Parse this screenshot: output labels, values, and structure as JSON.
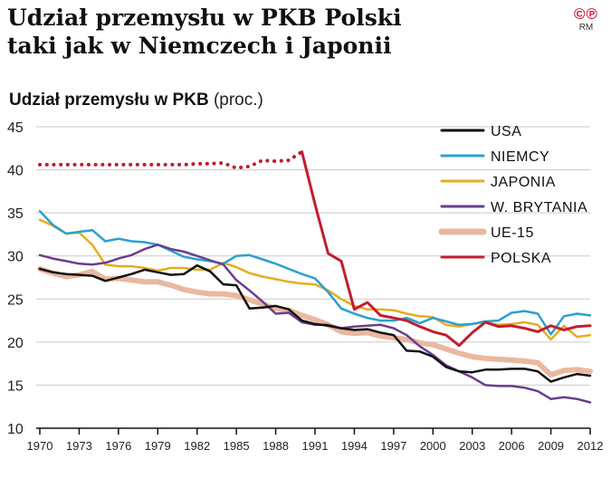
{
  "header": {
    "title_line1": "Udział przemysłu w PKB Polski",
    "title_line2": "taki jak w Niemczech i Japonii",
    "logo_marks": "©℗",
    "logo_credit": "RM"
  },
  "chart_data": {
    "type": "line",
    "title": "Udział przemysłu w PKB",
    "unit": "(proc.)",
    "xlabel": "",
    "ylabel": "",
    "xlim": [
      1970,
      2012
    ],
    "ylim": [
      10,
      45
    ],
    "yticks": [
      10,
      15,
      20,
      25,
      30,
      35,
      40,
      45
    ],
    "xticks": [
      1970,
      1973,
      1976,
      1979,
      1982,
      1985,
      1988,
      1991,
      1994,
      1997,
      2000,
      2003,
      2006,
      2009,
      2012
    ],
    "grid": "horizontal",
    "legend_position": "top-right",
    "series": [
      {
        "name": "USA",
        "color": "#111111",
        "style": "solid",
        "width": 2.5,
        "x": [
          1970,
          1971,
          1972,
          1973,
          1974,
          1975,
          1976,
          1977,
          1978,
          1979,
          1980,
          1981,
          1982,
          1983,
          1984,
          1985,
          1986,
          1987,
          1988,
          1989,
          1990,
          1991,
          1992,
          1993,
          1994,
          1995,
          1996,
          1997,
          1998,
          1999,
          2000,
          2001,
          2002,
          2003,
          2004,
          2005,
          2006,
          2007,
          2008,
          2009,
          2010,
          2011,
          2012
        ],
        "values": [
          28.5,
          28.1,
          27.9,
          27.8,
          27.7,
          27.1,
          27.5,
          27.9,
          28.4,
          28.1,
          27.8,
          27.9,
          28.9,
          28.2,
          26.7,
          26.6,
          23.9,
          24.0,
          24.2,
          23.8,
          22.5,
          22.1,
          21.9,
          21.6,
          21.4,
          21.5,
          21.1,
          20.8,
          19.0,
          18.9,
          18.3,
          17.1,
          16.6,
          16.5,
          16.8,
          16.8,
          16.9,
          16.9,
          16.6,
          15.4,
          15.9,
          16.3,
          16.1
        ]
      },
      {
        "name": "NIEMCY",
        "color": "#2aa0cf",
        "style": "solid",
        "width": 2.5,
        "x": [
          1970,
          1971,
          1972,
          1973,
          1974,
          1975,
          1976,
          1977,
          1978,
          1979,
          1980,
          1981,
          1982,
          1983,
          1984,
          1985,
          1986,
          1987,
          1988,
          1989,
          1990,
          1991,
          1992,
          1993,
          1994,
          1995,
          1996,
          1997,
          1998,
          1999,
          2000,
          2001,
          2002,
          2003,
          2004,
          2005,
          2006,
          2007,
          2008,
          2009,
          2010,
          2011,
          2012
        ],
        "values": [
          35.2,
          33.6,
          32.6,
          32.8,
          33.0,
          31.7,
          32.0,
          31.7,
          31.6,
          31.3,
          30.6,
          29.9,
          29.6,
          29.4,
          29.1,
          30.0,
          30.1,
          29.6,
          29.1,
          28.5,
          27.9,
          27.4,
          25.8,
          23.9,
          23.3,
          22.8,
          22.5,
          22.5,
          22.8,
          22.2,
          22.8,
          22.4,
          22.0,
          22.1,
          22.4,
          22.5,
          23.4,
          23.6,
          23.3,
          20.9,
          23.0,
          23.3,
          23.1
        ]
      },
      {
        "name": "JAPONIA",
        "color": "#e5ad1f",
        "style": "solid",
        "width": 2.5,
        "x": [
          1970,
          1971,
          1972,
          1973,
          1974,
          1975,
          1976,
          1977,
          1978,
          1979,
          1980,
          1981,
          1982,
          1983,
          1984,
          1985,
          1986,
          1987,
          1988,
          1989,
          1990,
          1991,
          1992,
          1993,
          1994,
          1995,
          1996,
          1997,
          1998,
          1999,
          2000,
          2001,
          2002,
          2003,
          2004,
          2005,
          2006,
          2007,
          2008,
          2009,
          2010,
          2011,
          2012
        ],
        "values": [
          34.2,
          33.5,
          32.6,
          32.7,
          31.3,
          29.0,
          28.8,
          28.8,
          28.6,
          28.3,
          28.6,
          28.6,
          28.4,
          28.4,
          29.2,
          28.7,
          28.0,
          27.6,
          27.3,
          27.0,
          26.8,
          26.7,
          26.0,
          25.0,
          24.2,
          23.8,
          23.8,
          23.7,
          23.3,
          23.0,
          22.9,
          22.0,
          21.8,
          22.1,
          22.3,
          22.0,
          22.1,
          22.3,
          22.0,
          20.3,
          21.9,
          20.6,
          20.8
        ]
      },
      {
        "name": "W. BRYTANIA",
        "color": "#6a3d8f",
        "style": "solid",
        "width": 2.5,
        "x": [
          1970,
          1971,
          1972,
          1973,
          1974,
          1975,
          1976,
          1977,
          1978,
          1979,
          1980,
          1981,
          1982,
          1983,
          1984,
          1985,
          1986,
          1987,
          1988,
          1989,
          1990,
          1991,
          1992,
          1993,
          1994,
          1995,
          1996,
          1997,
          1998,
          1999,
          2000,
          2001,
          2002,
          2003,
          2004,
          2005,
          2006,
          2007,
          2008,
          2009,
          2010,
          2011,
          2012
        ],
        "values": [
          30.1,
          29.7,
          29.4,
          29.1,
          29.0,
          29.2,
          29.7,
          30.1,
          30.8,
          31.3,
          30.8,
          30.5,
          30.0,
          29.5,
          29.0,
          27.2,
          26.0,
          24.7,
          23.3,
          23.4,
          22.3,
          22.0,
          22.0,
          21.6,
          21.8,
          21.9,
          22.0,
          21.6,
          20.8,
          19.5,
          18.5,
          17.3,
          16.6,
          15.9,
          15.0,
          14.9,
          14.9,
          14.7,
          14.3,
          13.4,
          13.6,
          13.4,
          13.0
        ]
      },
      {
        "name": "UE-15",
        "color": "#eab8a0",
        "style": "solid",
        "width": 6,
        "x": [
          1970,
          1971,
          1972,
          1973,
          1974,
          1975,
          1976,
          1977,
          1978,
          1979,
          1980,
          1981,
          1982,
          1983,
          1984,
          1985,
          1986,
          1987,
          1988,
          1989,
          1990,
          1991,
          1992,
          1993,
          1994,
          1995,
          1996,
          1997,
          1998,
          1999,
          2000,
          2001,
          2002,
          2003,
          2004,
          2005,
          2006,
          2007,
          2008,
          2009,
          2010,
          2011,
          2012
        ],
        "values": [
          28.5,
          28.0,
          27.6,
          27.8,
          28.2,
          27.3,
          27.4,
          27.2,
          27.0,
          27.0,
          26.6,
          26.1,
          25.8,
          25.6,
          25.6,
          25.4,
          24.9,
          24.4,
          23.9,
          23.7,
          23.1,
          22.6,
          22.0,
          21.2,
          21.0,
          21.1,
          20.7,
          20.5,
          20.3,
          19.9,
          19.7,
          19.2,
          18.7,
          18.3,
          18.1,
          18.0,
          17.9,
          17.8,
          17.6,
          16.2,
          16.7,
          16.8,
          16.6
        ]
      },
      {
        "name": "POLSKA",
        "color": "#c01e32",
        "style": "mixed",
        "width": 3,
        "dotted_x": [
          1970,
          1971,
          1972,
          1973,
          1974,
          1975,
          1976,
          1977,
          1978,
          1979,
          1980,
          1981,
          1982,
          1983,
          1984,
          1985,
          1986,
          1987,
          1988,
          1989,
          1990
        ],
        "dotted_values": [
          40.6,
          40.6,
          40.6,
          40.6,
          40.6,
          40.6,
          40.6,
          40.6,
          40.6,
          40.6,
          40.6,
          40.6,
          40.7,
          40.7,
          40.8,
          40.2,
          40.4,
          41.1,
          41.0,
          41.1,
          42.1
        ],
        "x": [
          1990,
          1991,
          1992,
          1993,
          1994,
          1995,
          1996,
          1997,
          1998,
          1999,
          2000,
          2001,
          2002,
          2003,
          2004,
          2005,
          2006,
          2007,
          2008,
          2009,
          2010,
          2011,
          2012
        ],
        "values": [
          42.1,
          36.0,
          30.3,
          29.4,
          23.8,
          24.6,
          23.1,
          22.8,
          22.5,
          21.8,
          21.2,
          20.8,
          19.6,
          21.1,
          22.3,
          21.8,
          21.9,
          21.6,
          21.2,
          21.9,
          21.4,
          21.8,
          21.9
        ]
      }
    ]
  }
}
